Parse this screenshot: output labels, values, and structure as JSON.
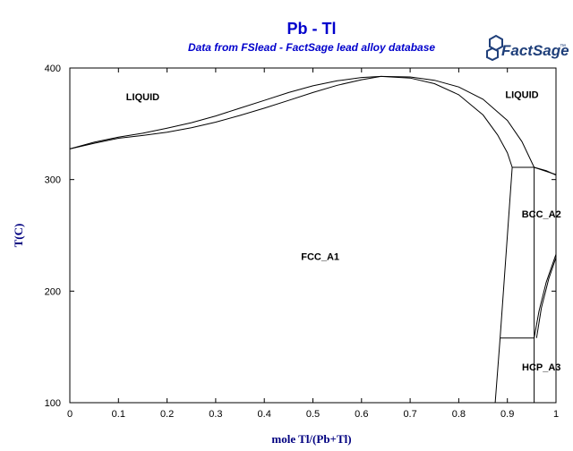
{
  "chart_data": {
    "type": "line",
    "title": "Pb - Tl",
    "subtitle": "Data from FSlead - FactSage lead alloy database",
    "xlabel": "mole Tl/(Pb+Tl)",
    "ylabel": "T(C)",
    "xlim": [
      0,
      1
    ],
    "ylim": [
      100,
      400
    ],
    "x_ticks": [
      "0",
      "0.1",
      "0.2",
      "0.3",
      "0.4",
      "0.5",
      "0.6",
      "0.7",
      "0.8",
      "0.9",
      "1"
    ],
    "y_ticks": [
      "100",
      "200",
      "300",
      "400"
    ],
    "grid": false,
    "legend": "none",
    "region_labels": [
      {
        "text": "LIQUID",
        "x": 0.15,
        "y": 371
      },
      {
        "text": "LIQUID",
        "x": 0.93,
        "y": 373
      },
      {
        "text": "FCC_A1",
        "x": 0.515,
        "y": 228
      },
      {
        "text": "BCC_A2",
        "x": 0.97,
        "y": 266
      },
      {
        "text": "HCP_A3",
        "x": 0.97,
        "y": 129
      }
    ],
    "series": [
      {
        "values": [
          [
            0,
            327.5
          ],
          [
            0.05,
            333.5
          ],
          [
            0.1,
            338
          ],
          [
            0.15,
            341.5
          ],
          [
            0.2,
            346
          ],
          [
            0.25,
            351
          ],
          [
            0.3,
            357
          ],
          [
            0.35,
            364
          ],
          [
            0.4,
            371
          ],
          [
            0.45,
            378
          ],
          [
            0.5,
            384
          ],
          [
            0.55,
            388.5
          ],
          [
            0.6,
            391.5
          ],
          [
            0.64,
            392.5
          ]
        ]
      },
      {
        "values": [
          [
            0,
            327.5
          ],
          [
            0.05,
            332.5
          ],
          [
            0.1,
            337
          ],
          [
            0.15,
            339.5
          ],
          [
            0.2,
            342.5
          ],
          [
            0.25,
            346.5
          ],
          [
            0.3,
            351.5
          ],
          [
            0.35,
            357.5
          ],
          [
            0.4,
            364
          ],
          [
            0.45,
            371
          ],
          [
            0.5,
            378
          ],
          [
            0.55,
            384.5
          ],
          [
            0.6,
            389.5
          ],
          [
            0.64,
            392.5
          ]
        ]
      },
      {
        "values": [
          [
            0.64,
            392.5
          ],
          [
            0.7,
            391
          ],
          [
            0.75,
            386
          ],
          [
            0.8,
            376
          ],
          [
            0.85,
            358
          ],
          [
            0.88,
            340
          ],
          [
            0.9,
            324
          ],
          [
            0.91,
            311
          ]
        ]
      },
      {
        "values": [
          [
            0.64,
            392.5
          ],
          [
            0.7,
            392
          ],
          [
            0.75,
            389
          ],
          [
            0.8,
            383
          ],
          [
            0.85,
            372
          ],
          [
            0.9,
            353
          ],
          [
            0.93,
            334
          ],
          [
            0.955,
            311
          ]
        ]
      },
      {
        "values": [
          [
            0.91,
            311
          ],
          [
            0.955,
            311
          ]
        ]
      },
      {
        "values": [
          [
            0.955,
            311
          ],
          [
            1,
            304.5
          ]
        ]
      },
      {
        "values": [
          [
            0.955,
            311
          ],
          [
            0.98,
            308
          ],
          [
            1,
            304
          ]
        ]
      },
      {
        "values": [
          [
            0.91,
            311
          ],
          [
            0.885,
            158
          ],
          [
            0.875,
            100
          ]
        ]
      },
      {
        "values": [
          [
            0.955,
            311
          ],
          [
            0.955,
            100
          ]
        ]
      },
      {
        "values": [
          [
            0.885,
            158
          ],
          [
            0.955,
            158
          ]
        ]
      },
      {
        "values": [
          [
            0.955,
            158
          ],
          [
            0.965,
            182
          ],
          [
            0.98,
            208
          ],
          [
            1,
            233
          ]
        ]
      },
      {
        "values": [
          [
            0.96,
            158
          ],
          [
            0.97,
            185
          ],
          [
            0.985,
            211
          ],
          [
            1,
            230
          ]
        ]
      }
    ]
  },
  "logo": {
    "text": "FactSage",
    "mark": "™"
  }
}
